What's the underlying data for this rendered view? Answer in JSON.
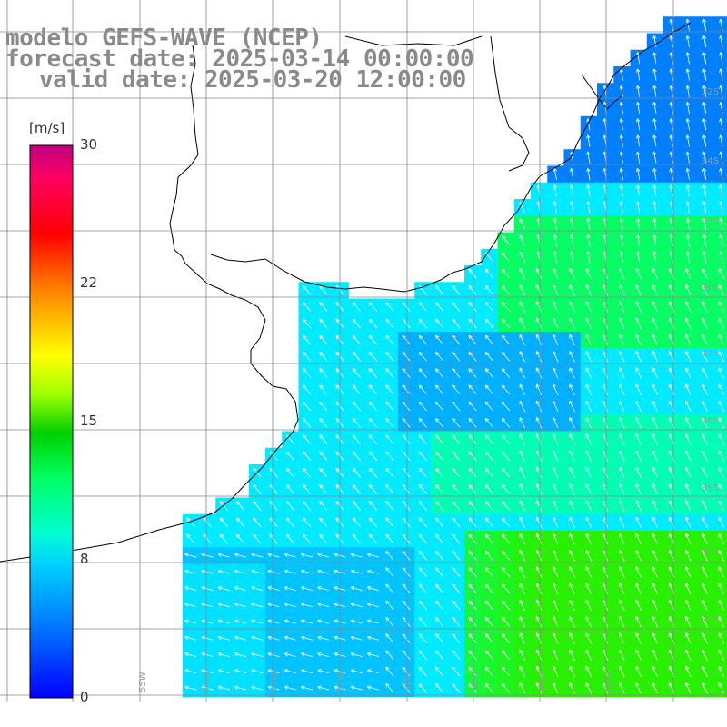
{
  "header": {
    "line1": "modelo GEFS-WAVE (NCEP)",
    "line2": "forecast date: 2025-03-14 00:00:00",
    "line3": "valid date: 2025-03-20 12:00:00"
  },
  "colorbar": {
    "unit": "[m/s]",
    "ticks": [
      "30",
      "22",
      "15",
      "8",
      "0"
    ],
    "colors": [
      "#0000ff",
      "#0080ff",
      "#00e0ff",
      "#00ff80",
      "#00d000",
      "#c0ff00",
      "#ffff00",
      "#ff8000",
      "#ff0000",
      "#ff0070",
      "#c00080"
    ]
  },
  "map": {
    "right_labels": [
      "32S",
      "34S",
      "35S",
      "36S",
      "37S",
      "38S",
      "39S",
      "40S",
      "41S"
    ],
    "bottom_labels": [
      "55W",
      "54W",
      "53W",
      "52W",
      "51W",
      "50W",
      "49W",
      "48W"
    ],
    "land_color": "#ffffff",
    "grid_color": "#888888"
  }
}
